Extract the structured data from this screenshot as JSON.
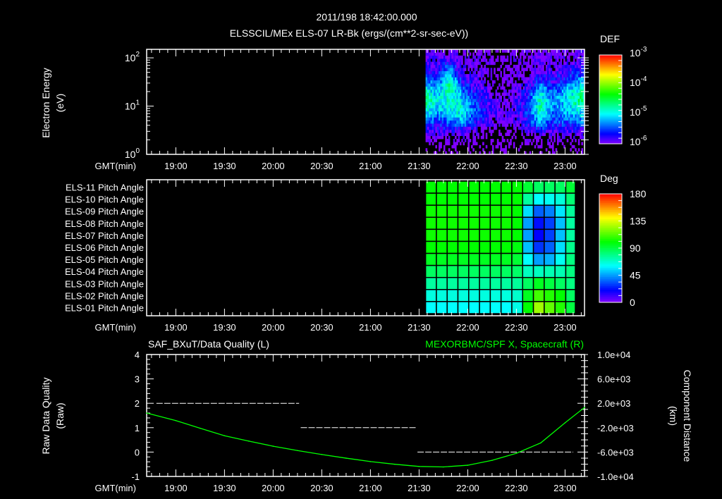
{
  "header": {
    "timestamp": "2011/198 18:42:00.000",
    "title": "ELSSCIL/MEx ELS-07 LR-Bk  (ergs/(cm**2-sr-sec-eV))"
  },
  "axis_common": {
    "time_label": "GMT(min)",
    "time_start": "18:42",
    "time_end": "23:12",
    "time_ticks": [
      "19:00",
      "19:30",
      "20:00",
      "20:30",
      "21:00",
      "21:30",
      "22:00",
      "22:30",
      "23:00"
    ]
  },
  "chart_data": [
    {
      "type": "heatmap",
      "name": "electron-spectrogram",
      "ylabel": "Electron Energy",
      "yunit": "(eV)",
      "yscale": "log",
      "ylim": [
        1,
        150
      ],
      "yticks": [
        {
          "base": "10",
          "exp": "0"
        },
        {
          "base": "10",
          "exp": "1"
        },
        {
          "base": "10",
          "exp": "2"
        }
      ],
      "colorbar": {
        "label": "DEF",
        "scale": "log",
        "range_log10": [
          -6,
          -3
        ],
        "ticks": [
          {
            "base": "10",
            "exp": "-3"
          },
          {
            "base": "10",
            "exp": "-4"
          },
          {
            "base": "10",
            "exp": "-5"
          },
          {
            "base": "10",
            "exp": "-6"
          }
        ]
      },
      "data_start": "21:34",
      "time_bins": [
        "21:34",
        "21:41",
        "21:49",
        "21:57",
        "22:05",
        "22:13",
        "22:21",
        "22:29",
        "22:37",
        "22:45",
        "22:53",
        "23:01",
        "23:09"
      ],
      "energy_bins_eV": [
        1.4,
        2.6,
        4.6,
        7.8,
        13,
        23,
        39,
        68,
        120
      ],
      "log10_def": [
        [
          -6.3,
          -6.3,
          -6.3,
          -6.3,
          -6.3,
          -6.3,
          -6.3,
          -6.3,
          -6.3,
          -6.3,
          -6.3,
          -6.3,
          -6.3
        ],
        [
          -6.0,
          -6.0,
          -6.0,
          -6.0,
          -6.1,
          -6.3,
          -6.3,
          -6.3,
          -6.1,
          -6.0,
          -6.0,
          -6.0,
          -6.0
        ],
        [
          -5.5,
          -5.6,
          -5.4,
          -5.3,
          -5.7,
          -5.9,
          -6.1,
          -6.0,
          -5.7,
          -5.2,
          -5.6,
          -5.5,
          -5.4
        ],
        [
          -5.0,
          -5.2,
          -5.0,
          -4.9,
          -5.5,
          -5.8,
          -6.0,
          -5.9,
          -5.6,
          -4.8,
          -5.4,
          -5.2,
          -5.0
        ],
        [
          -4.5,
          -5.0,
          -4.9,
          -5.1,
          -5.6,
          -5.9,
          -6.1,
          -5.9,
          -5.6,
          -4.8,
          -5.3,
          -5.1,
          -4.6
        ],
        [
          -5.0,
          -5.3,
          -4.6,
          -5.5,
          -5.8,
          -6.0,
          -6.2,
          -6.0,
          -5.8,
          -5.2,
          -5.6,
          -5.2,
          -4.9
        ],
        [
          -5.5,
          -5.6,
          -5.0,
          -5.8,
          -6.0,
          -6.1,
          -6.2,
          -6.1,
          -6.0,
          -5.7,
          -5.8,
          -5.6,
          -5.4
        ],
        [
          -5.9,
          -5.9,
          -5.5,
          -6.0,
          -6.0,
          -6.1,
          -6.2,
          -6.1,
          -6.0,
          -6.0,
          -6.0,
          -5.9,
          -5.8
        ],
        [
          -6.05,
          -6.05,
          -6.05,
          -6.05,
          -6.05,
          -6.1,
          -6.2,
          -6.1,
          -6.05,
          -6.05,
          -6.05,
          -6.05,
          -6.05
        ]
      ]
    },
    {
      "type": "heatmap",
      "name": "pitch-angle",
      "rows": [
        "ELS-11 Pitch Angle",
        "ELS-10 Pitch Angle",
        "ELS-09 Pitch Angle",
        "ELS-08 Pitch Angle",
        "ELS-07 Pitch Angle",
        "ELS-06 Pitch Angle",
        "ELS-05 Pitch Angle",
        "ELS-04 Pitch Angle",
        "ELS-03 Pitch Angle",
        "ELS-02 Pitch Angle",
        "ELS-01 Pitch Angle"
      ],
      "colorbar": {
        "label": "Deg",
        "range": [
          0,
          180
        ],
        "ticks": [
          "180",
          "135",
          "90",
          "45",
          "0"
        ]
      },
      "data_start": "21:34",
      "column_minutes": 6.65,
      "values_deg": [
        [
          100,
          100,
          100,
          100,
          100,
          100,
          100,
          100,
          100,
          92,
          85,
          85,
          85,
          92
        ],
        [
          100,
          100,
          100,
          100,
          100,
          100,
          100,
          100,
          100,
          75,
          60,
          62,
          66,
          82
        ],
        [
          102,
          102,
          102,
          102,
          102,
          102,
          102,
          102,
          100,
          55,
          35,
          40,
          56,
          76
        ],
        [
          102,
          102,
          102,
          102,
          102,
          102,
          102,
          102,
          100,
          45,
          22,
          30,
          50,
          75
        ],
        [
          102,
          102,
          102,
          102,
          102,
          102,
          102,
          102,
          100,
          45,
          20,
          30,
          50,
          75
        ],
        [
          100,
          100,
          100,
          100,
          100,
          100,
          100,
          100,
          98,
          50,
          28,
          35,
          55,
          78
        ],
        [
          95,
          95,
          95,
          95,
          95,
          95,
          95,
          95,
          92,
          60,
          45,
          48,
          62,
          80
        ],
        [
          85,
          85,
          85,
          85,
          85,
          85,
          85,
          85,
          84,
          70,
          70,
          72,
          72,
          80
        ],
        [
          75,
          75,
          75,
          75,
          75,
          75,
          75,
          75,
          76,
          85,
          95,
          90,
          85,
          80
        ],
        [
          65,
          65,
          65,
          65,
          65,
          65,
          65,
          65,
          68,
          95,
          110,
          105,
          100,
          85
        ],
        [
          60,
          60,
          60,
          60,
          60,
          60,
          60,
          60,
          64,
          100,
          125,
          115,
          105,
          90
        ]
      ]
    },
    {
      "type": "line",
      "name": "quality-and-position",
      "left_title": "SAF_BXuT/Data Quality (L)",
      "right_title": "MEXORBMC/SPF X, Spacecraft (R)",
      "ylabel_left": "Raw Data Quality",
      "yunit_left": "(Raw)",
      "ylabel_right": "Component Distance",
      "yunit_right": "(km)",
      "ylim_left": [
        -1,
        4
      ],
      "yticks_left": [
        "4",
        "3",
        "2",
        "1",
        "0",
        "-1"
      ],
      "ylim_right": [
        -10000,
        10000
      ],
      "yticks_right": [
        "1.0e+04",
        "6.0e+03",
        "2.0e+03",
        "-2.0e+03",
        "-6.0e+03",
        "-1.0e+04"
      ],
      "series": [
        {
          "name": "Data Quality",
          "axis": "left",
          "color": "#ffffff",
          "segments": [
            {
              "start": "18:48",
              "end": "20:16",
              "value": 2
            },
            {
              "start": "20:17",
              "end": "21:28",
              "value": 1
            },
            {
              "start": "21:29",
              "end": "23:05",
              "value": 0
            }
          ]
        },
        {
          "name": "SPF X Spacecraft",
          "axis": "right",
          "color": "#00ff00",
          "points": [
            [
              "18:42",
              400
            ],
            [
              "19:00",
              -840
            ],
            [
              "19:15",
              -2100
            ],
            [
              "19:30",
              -3320
            ],
            [
              "19:45",
              -4200
            ],
            [
              "20:00",
              -5040
            ],
            [
              "20:15",
              -5750
            ],
            [
              "20:30",
              -6400
            ],
            [
              "20:45",
              -7000
            ],
            [
              "21:00",
              -7560
            ],
            [
              "21:15",
              -8000
            ],
            [
              "21:30",
              -8360
            ],
            [
              "21:45",
              -8440
            ],
            [
              "22:00",
              -8160
            ],
            [
              "22:15",
              -7360
            ],
            [
              "22:30",
              -6200
            ],
            [
              "22:45",
              -4500
            ],
            [
              "23:00",
              -1200
            ],
            [
              "23:12",
              1320
            ]
          ]
        }
      ]
    }
  ]
}
